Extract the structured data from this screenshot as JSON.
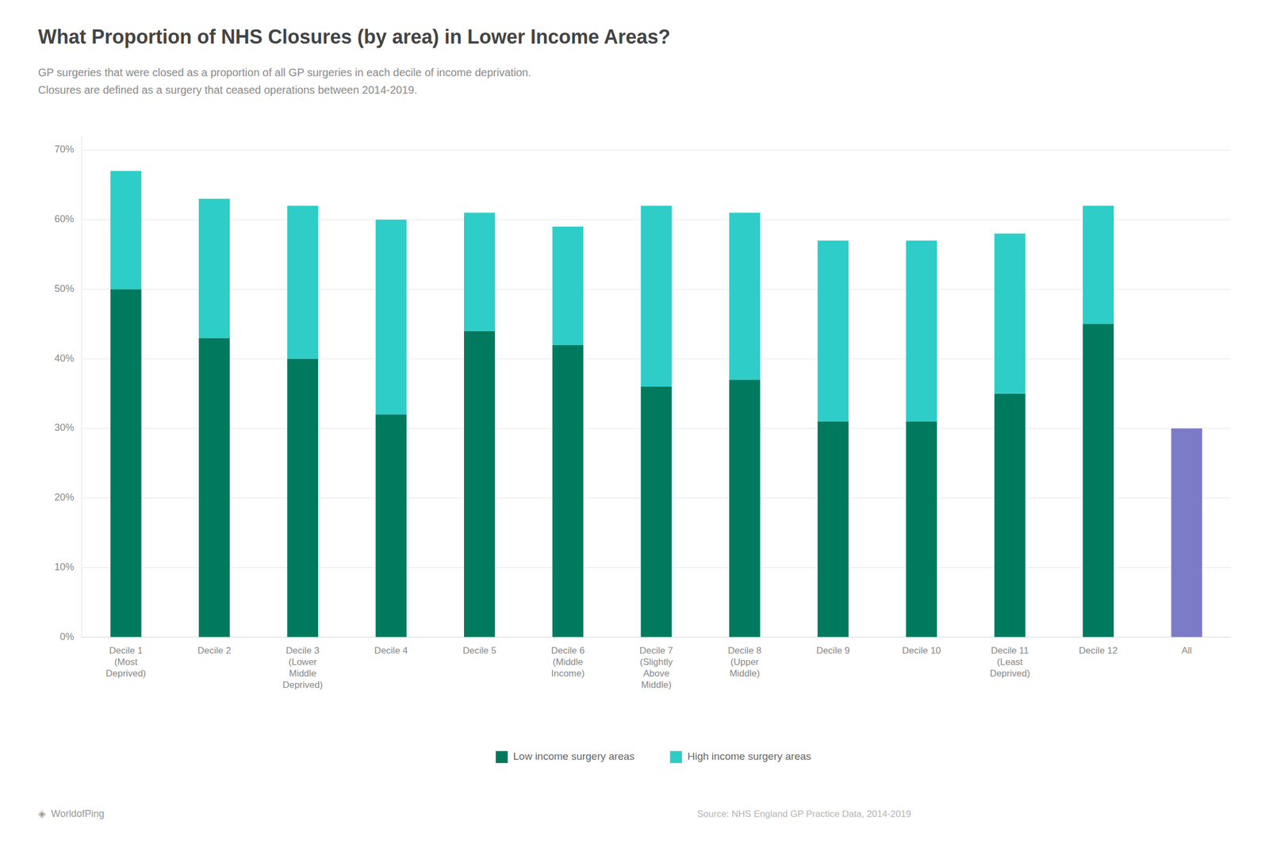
{
  "chart_data": {
    "type": "bar",
    "stacked": true,
    "title": "What Proportion of NHS Closures (by area) in Lower Income Areas?",
    "subtitle": "GP surgeries that were closed as a proportion of all GP surgeries in each decile of income deprivation.\nClosures are defined as a surgery that ceased operations between 2014-2019.",
    "categories": [
      "Decile 1\n(Most\nDeprived)",
      "Decile 2",
      "Decile 3\n(Lower\nMiddle\nDeprived)",
      "Decile 4",
      "Decile 5",
      "Decile 6\n(Middle\nIncome)",
      "Decile 7\n(Slightly\nAbove\nMiddle)",
      "Decile 8\n(Upper\nMiddle)",
      "Decile 9",
      "Decile 10",
      "Decile 11\n(Least\nDeprived)",
      "Decile 12",
      "All"
    ],
    "series": [
      {
        "name": "Low income surgery areas",
        "color": "#007A5E",
        "colors": [
          "#007A5E",
          "#007A5E",
          "#007A5E",
          "#007A5E",
          "#007A5E",
          "#007A5E",
          "#007A5E",
          "#007A5E",
          "#007A5E",
          "#007A5E",
          "#007A5E",
          "#007A5E",
          "#7B7BC8"
        ],
        "values": [
          0.5,
          0.43,
          0.4,
          0.32,
          0.44,
          0.42,
          0.36,
          0.37,
          0.31,
          0.31,
          0.35,
          0.45,
          0.3
        ]
      },
      {
        "name": "High income surgery areas",
        "color": "#2ECDC7",
        "values": [
          0.17,
          0.2,
          0.22,
          0.28,
          0.17,
          0.17,
          0.26,
          0.24,
          0.26,
          0.26,
          0.23,
          0.17,
          0.0
        ]
      }
    ],
    "ylim": [
      0,
      0.72
    ],
    "yticks": [
      {
        "value": 0.0,
        "label": "0%"
      },
      {
        "value": 0.1,
        "label": "10%"
      },
      {
        "value": 0.2,
        "label": "20%"
      },
      {
        "value": 0.3,
        "label": "30%"
      },
      {
        "value": 0.4,
        "label": "40%"
      },
      {
        "value": 0.5,
        "label": "50%"
      },
      {
        "value": 0.6,
        "label": "60%"
      },
      {
        "value": 0.7,
        "label": "70%"
      }
    ],
    "grid": true,
    "legend": "bottom",
    "annotations": [
      "◈  WorldofPing",
      "Source: NHS England GP Practice Data, 2014-2019"
    ]
  }
}
